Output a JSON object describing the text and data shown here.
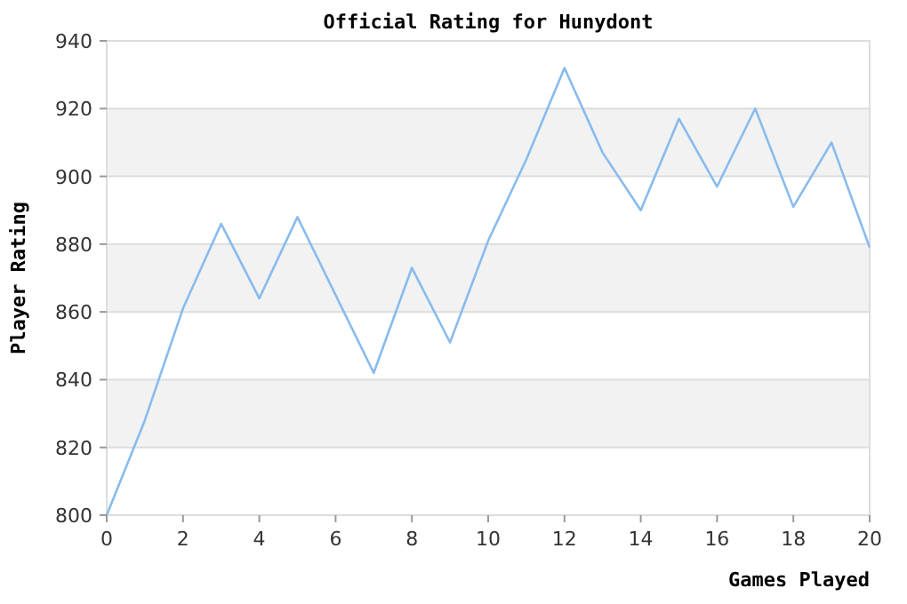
{
  "chart_data": {
    "type": "line",
    "title": "Official Rating for Hunydont",
    "xlabel": "Games Played",
    "ylabel": "Player Rating",
    "x": [
      0,
      1,
      2,
      3,
      4,
      5,
      6,
      7,
      8,
      9,
      10,
      11,
      12,
      13,
      14,
      15,
      16,
      17,
      18,
      19,
      20
    ],
    "series": [
      {
        "color": "#88bbee",
        "values": [
          800,
          828,
          861,
          886,
          864,
          888,
          865,
          842,
          873,
          851,
          881,
          905,
          932,
          907,
          890,
          917,
          897,
          920,
          891,
          910,
          879
        ]
      }
    ],
    "xlim": [
      0,
      20
    ],
    "xticks": [
      0,
      2,
      4,
      6,
      8,
      10,
      12,
      14,
      16,
      18,
      20
    ],
    "ylim": [
      800,
      940
    ],
    "yticks": [
      800,
      820,
      840,
      860,
      880,
      900,
      920,
      940
    ],
    "grid": "y",
    "marker": "none",
    "line_style": "solid",
    "bands": [
      {
        "axis": "y",
        "from": 820,
        "to": 840,
        "color": "#f2f2f2"
      },
      {
        "axis": "y",
        "from": 860,
        "to": 880,
        "color": "#f2f2f2"
      },
      {
        "axis": "y",
        "from": 900,
        "to": 920,
        "color": "#f2f2f2"
      }
    ]
  }
}
